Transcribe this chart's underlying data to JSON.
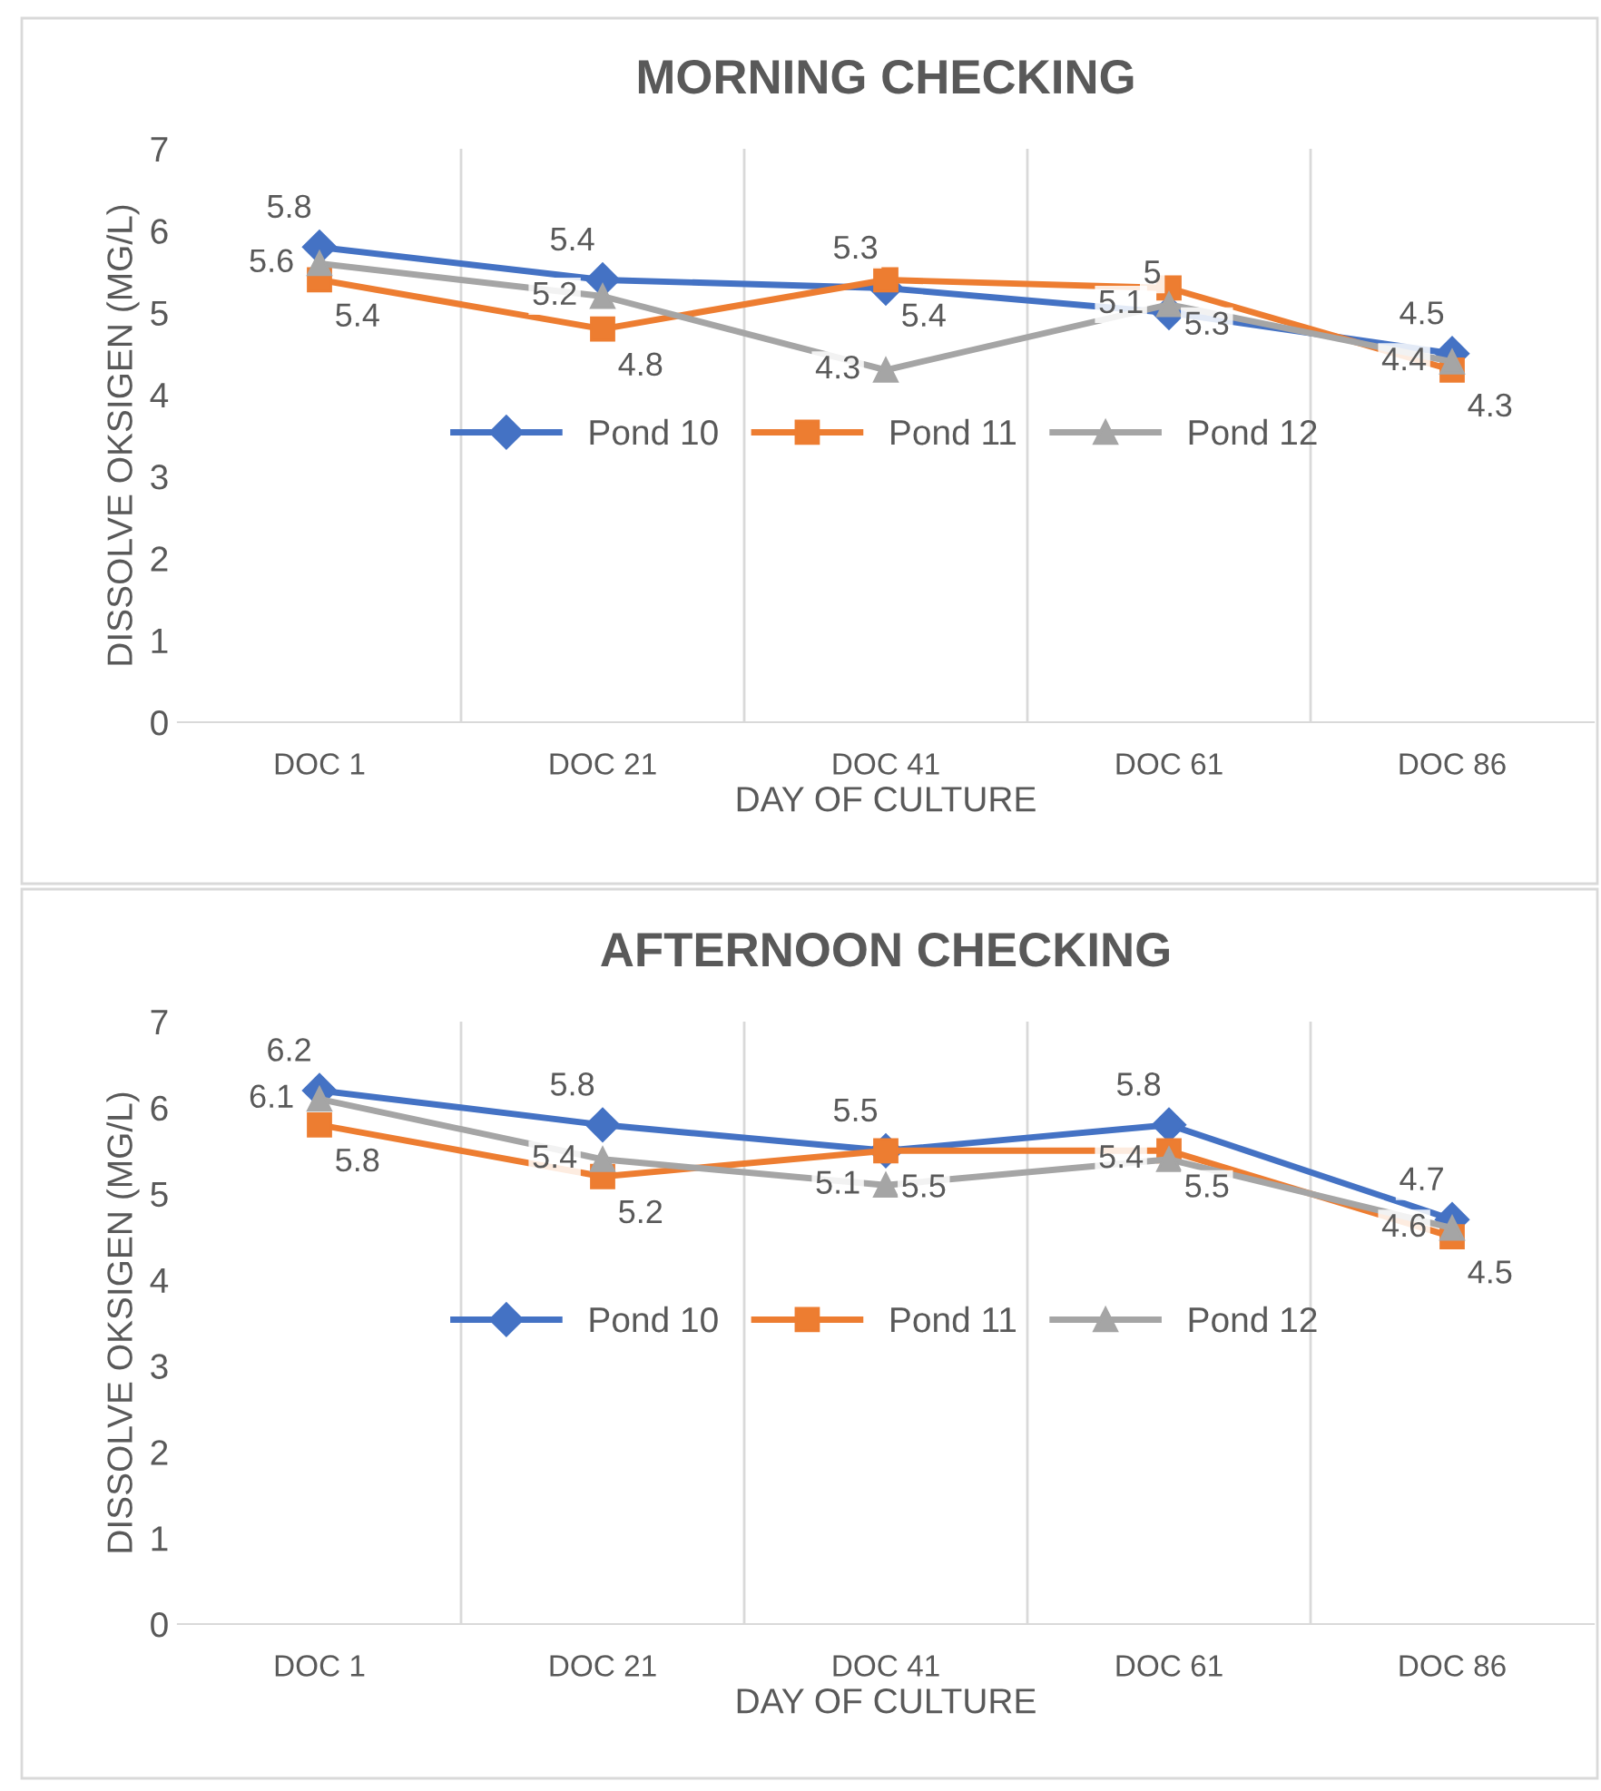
{
  "chart_data": [
    {
      "type": "line",
      "title": "MORNING CHECKING",
      "xlabel": "DAY OF CULTURE",
      "ylabel": "DISSOLVE OKSIGEN (MG/L)",
      "categories": [
        "DOC 1",
        "DOC 21",
        "DOC 41",
        "DOC 61",
        "DOC 86"
      ],
      "series": [
        {
          "name": "Pond 10",
          "color": "#4472c4",
          "marker": "diamond",
          "values": [
            5.8,
            5.4,
            5.3,
            5,
            4.5
          ]
        },
        {
          "name": "Pond 11",
          "color": "#ed7d31",
          "marker": "square",
          "values": [
            5.4,
            4.8,
            5.4,
            5.3,
            4.3
          ]
        },
        {
          "name": "Pond 12",
          "color": "#a5a5a5",
          "marker": "triangle",
          "values": [
            5.6,
            5.2,
            4.3,
            5.1,
            4.4
          ]
        }
      ],
      "ylim": [
        0,
        7
      ],
      "yticks": [
        0,
        1,
        2,
        3,
        4,
        5,
        6,
        7
      ],
      "grid": "x",
      "legend": "center",
      "data_labels": true,
      "line_style": "solid"
    },
    {
      "type": "line",
      "title": "AFTERNOON CHECKING",
      "xlabel": "DAY OF CULTURE",
      "ylabel": "DISSOLVE OKSIGEN (MG/L)",
      "categories": [
        "DOC 1",
        "DOC 21",
        "DOC 41",
        "DOC 61",
        "DOC 86"
      ],
      "series": [
        {
          "name": "Pond 10",
          "color": "#4472c4",
          "marker": "diamond",
          "values": [
            6.2,
            5.8,
            5.5,
            5.8,
            4.7
          ]
        },
        {
          "name": "Pond 11",
          "color": "#ed7d31",
          "marker": "square",
          "values": [
            5.8,
            5.2,
            5.5,
            5.5,
            4.5
          ]
        },
        {
          "name": "Pond 12",
          "color": "#a5a5a5",
          "marker": "triangle",
          "values": [
            6.1,
            5.4,
            5.1,
            5.4,
            4.6
          ]
        }
      ],
      "ylim": [
        0,
        7
      ],
      "yticks": [
        0,
        1,
        2,
        3,
        4,
        5,
        6,
        7
      ],
      "grid": "x",
      "legend": "center",
      "data_labels": true,
      "line_style": "solid"
    }
  ]
}
